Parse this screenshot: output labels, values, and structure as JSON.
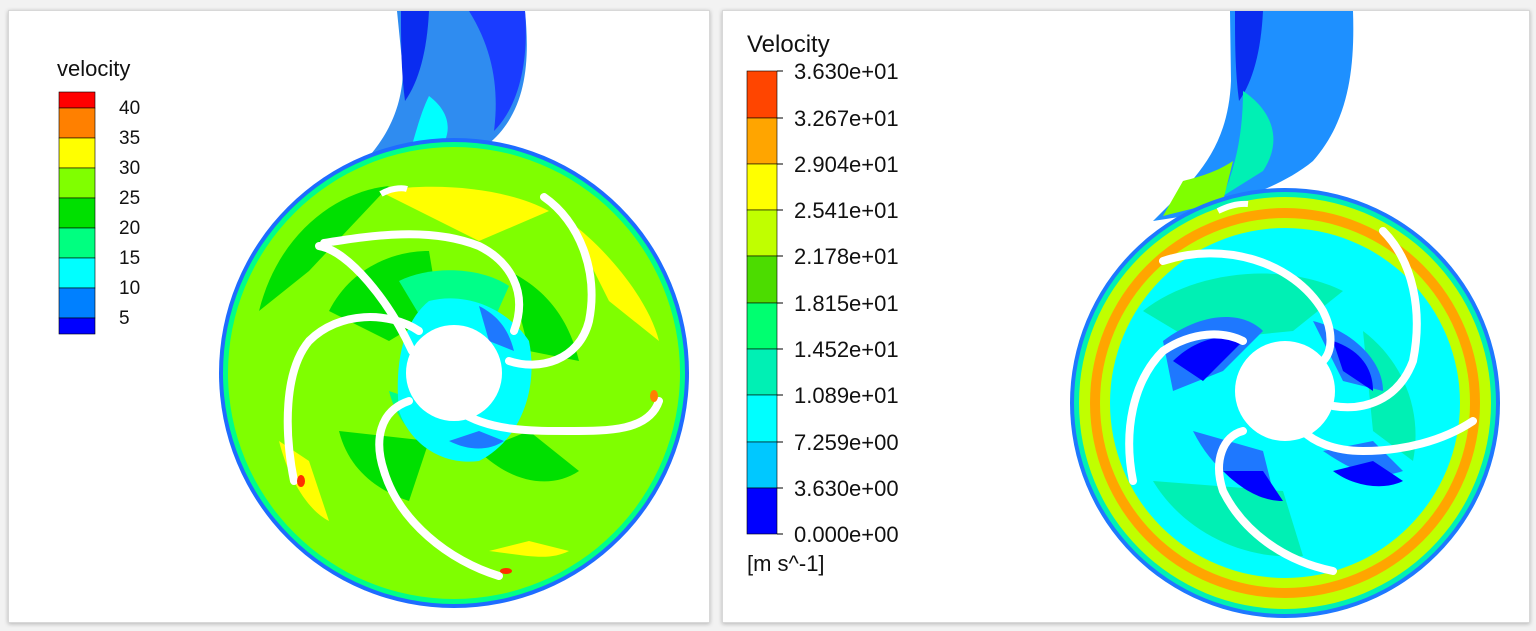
{
  "left_panel": {
    "legend_title": "velocity",
    "legend_labels": [
      "40",
      "35",
      "30",
      "25",
      "20",
      "15",
      "10",
      "5"
    ],
    "legend_colors": [
      "#ff0000",
      "#ff8000",
      "#ffff00",
      "#80ff00",
      "#00e000",
      "#00ff80",
      "#00ffff",
      "#0080ff",
      "#0000ff"
    ]
  },
  "right_panel": {
    "legend_title": "Velocity",
    "legend_labels": [
      "3.630e+01",
      "3.267e+01",
      "2.904e+01",
      "2.541e+01",
      "2.178e+01",
      "1.815e+01",
      "1.452e+01",
      "1.089e+01",
      "7.259e+00",
      "3.630e+00",
      "0.000e+00"
    ],
    "legend_colors": [
      "#ff4500",
      "#ffa500",
      "#ffff00",
      "#c0ff00",
      "#4cdc00",
      "#00ff70",
      "#00f0b4",
      "#00ffff",
      "#00c8ff",
      "#1e78ff",
      "#0000ff"
    ],
    "units": "[m s^-1]"
  }
}
